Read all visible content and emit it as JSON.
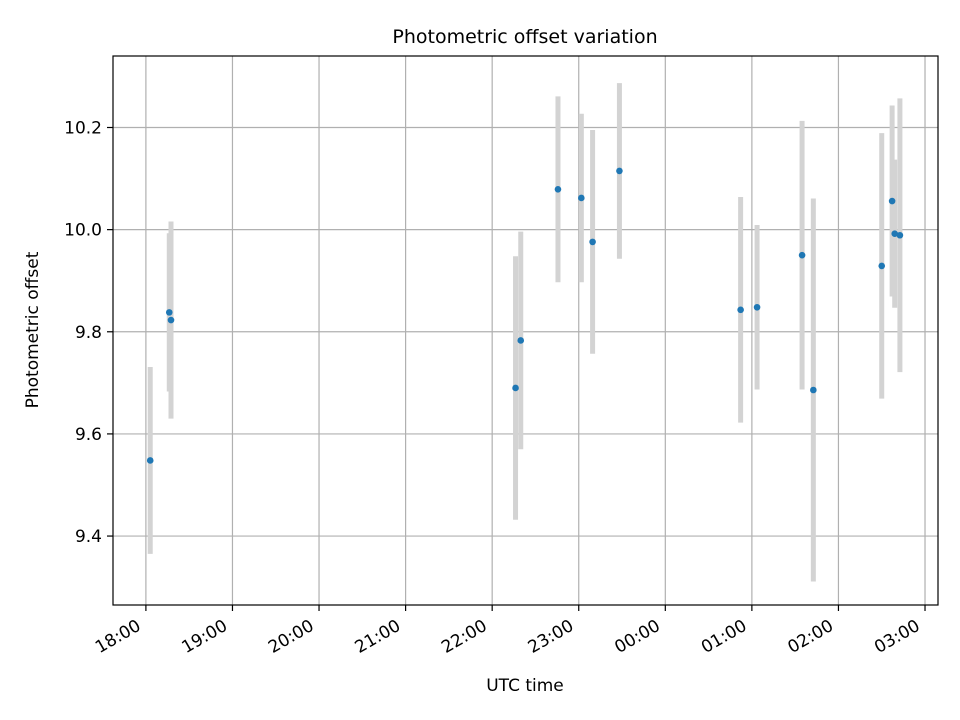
{
  "chart_data": {
    "type": "scatter",
    "title": "Photometric offset variation",
    "xlabel": "UTC time",
    "ylabel": "Photometric offset",
    "x_tick_labels": [
      "18:00",
      "19:00",
      "20:00",
      "21:00",
      "22:00",
      "23:00",
      "00:00",
      "01:00",
      "02:00",
      "03:00"
    ],
    "x_ticks_hours": [
      18,
      19,
      20,
      21,
      22,
      23,
      24,
      25,
      26,
      27
    ],
    "y_ticks": [
      9.4,
      9.6,
      9.8,
      10.0,
      10.2
    ],
    "y_tick_labels": [
      "9.4",
      "9.6",
      "9.8",
      "10.0",
      "10.2"
    ],
    "xlim_hours": [
      17.62,
      27.15
    ],
    "ylim": [
      9.265,
      10.34
    ],
    "grid": true,
    "point_color": "#1f77b4",
    "errorbar_color": "#d3d3d3",
    "points": [
      {
        "time": "18:03",
        "hours": 18.05,
        "y": 9.548,
        "err": 0.183
      },
      {
        "time": "18:16",
        "hours": 18.27,
        "y": 9.838,
        "err": 0.155
      },
      {
        "time": "18:17",
        "hours": 18.29,
        "y": 9.823,
        "err": 0.193
      },
      {
        "time": "22:16",
        "hours": 22.27,
        "y": 9.69,
        "err": 0.258
      },
      {
        "time": "22:20",
        "hours": 22.33,
        "y": 9.783,
        "err": 0.213
      },
      {
        "time": "22:46",
        "hours": 22.76,
        "y": 10.079,
        "err": 0.182
      },
      {
        "time": "23:02",
        "hours": 23.03,
        "y": 10.062,
        "err": 0.165
      },
      {
        "time": "23:09",
        "hours": 23.16,
        "y": 9.976,
        "err": 0.219
      },
      {
        "time": "23:28",
        "hours": 23.47,
        "y": 10.115,
        "err": 0.172
      },
      {
        "time": "00:52",
        "hours": 24.87,
        "y": 9.843,
        "err": 0.221
      },
      {
        "time": "01:04",
        "hours": 25.06,
        "y": 9.848,
        "err": 0.161
      },
      {
        "time": "01:35",
        "hours": 25.58,
        "y": 9.95,
        "err": 0.263
      },
      {
        "time": "01:42",
        "hours": 25.71,
        "y": 9.686,
        "err": 0.375
      },
      {
        "time": "02:30",
        "hours": 26.5,
        "y": 9.929,
        "err": 0.26
      },
      {
        "time": "02:37",
        "hours": 26.62,
        "y": 10.056,
        "err": 0.187
      },
      {
        "time": "02:39",
        "hours": 26.65,
        "y": 9.992,
        "err": 0.145
      },
      {
        "time": "02:43",
        "hours": 26.71,
        "y": 9.989,
        "err": 0.268
      }
    ]
  }
}
